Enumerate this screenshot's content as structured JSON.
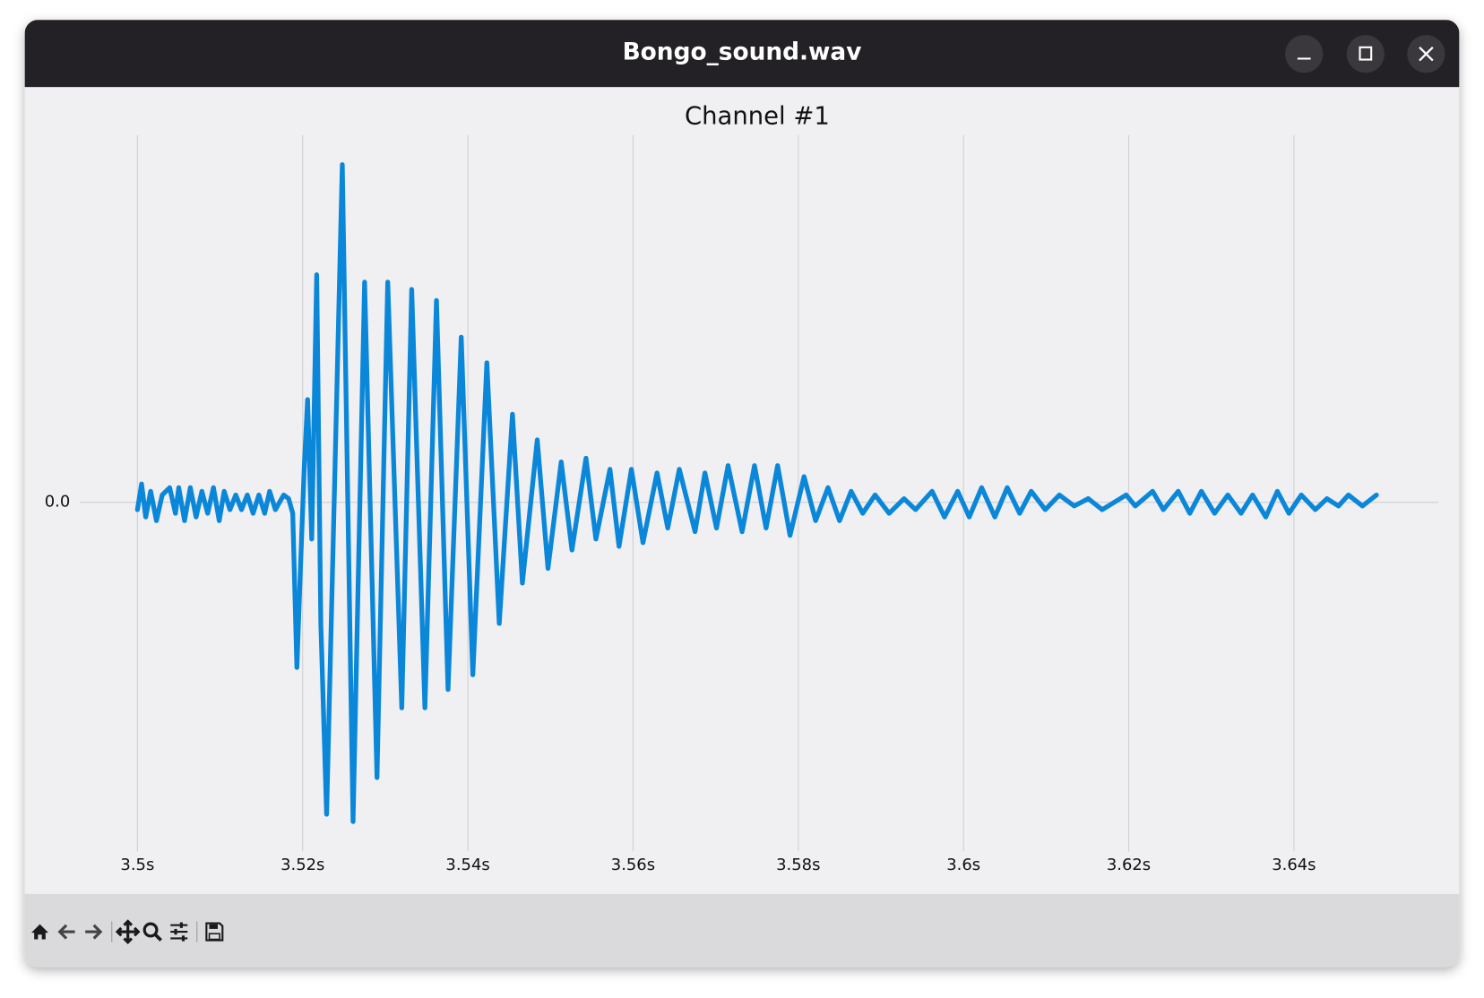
{
  "window_title": "Bongo_sound.wav",
  "chart_data": {
    "type": "line",
    "title": "Channel #1",
    "color": "#0a87d9",
    "grid": true,
    "xlim": [
      3.493,
      3.6575
    ],
    "ylim": [
      -0.951,
      1
    ],
    "xticks": [
      {
        "value": 3.5,
        "label": "3.5s"
      },
      {
        "value": 3.52,
        "label": "3.52s"
      },
      {
        "value": 3.54,
        "label": "3.54s"
      },
      {
        "value": 3.56,
        "label": "3.56s"
      },
      {
        "value": 3.58,
        "label": "3.58s"
      },
      {
        "value": 3.6,
        "label": "3.6s"
      },
      {
        "value": 3.62,
        "label": "3.62s"
      },
      {
        "value": 3.64,
        "label": "3.64s"
      }
    ],
    "yticks": [
      {
        "value": 0,
        "label": "0.0"
      }
    ],
    "x": [
      3.5,
      3.5005,
      3.501,
      3.5016,
      3.5023,
      3.503,
      3.5039,
      3.5046,
      3.505,
      3.5057,
      3.5064,
      3.5071,
      3.5078,
      3.5085,
      3.5092,
      3.5099,
      3.5105,
      3.5112,
      3.5119,
      3.5126,
      3.5133,
      3.514,
      3.5147,
      3.5154,
      3.516,
      3.5167,
      3.5177,
      3.5183,
      3.5188,
      3.5193,
      3.5197,
      3.5202,
      3.5206,
      3.5211,
      3.5217,
      3.5222,
      3.5229,
      3.5236,
      3.5248,
      3.5261,
      3.5275,
      3.529,
      3.5303,
      3.532,
      3.5332,
      3.5348,
      3.5362,
      3.5376,
      3.5392,
      3.5406,
      3.5423,
      3.5438,
      3.5454,
      3.5466,
      3.5484,
      3.5497,
      3.5513,
      3.5526,
      3.5543,
      3.5555,
      3.5572,
      3.5583,
      3.5598,
      3.5612,
      3.5629,
      3.5642,
      3.5656,
      3.5675,
      3.5687,
      3.5701,
      3.5715,
      3.5732,
      3.5747,
      3.5761,
      3.5775,
      3.579,
      3.5807,
      3.5821,
      3.5836,
      3.585,
      3.5864,
      3.5878,
      3.5893,
      3.591,
      3.5928,
      3.5942,
      3.5962,
      3.5977,
      3.5993,
      3.6007,
      3.6022,
      3.6038,
      3.6053,
      3.6068,
      3.6082,
      3.6099,
      3.6116,
      3.6134,
      3.6151,
      3.6168,
      3.6197,
      3.6208,
      3.6229,
      3.6242,
      3.626,
      3.6274,
      3.6288,
      3.6304,
      3.632,
      3.6336,
      3.635,
      3.6366,
      3.638,
      3.6394,
      3.6409,
      3.6426,
      3.644,
      3.6454,
      3.6466,
      3.6483,
      3.65
    ],
    "values": [
      -0.02,
      0.05,
      -0.04,
      0.03,
      -0.05,
      0.02,
      0.04,
      -0.03,
      0.04,
      -0.05,
      0.04,
      -0.04,
      0.03,
      -0.03,
      0.04,
      -0.05,
      0.03,
      -0.02,
      0.02,
      -0.02,
      0.02,
      -0.03,
      0.02,
      -0.03,
      0.03,
      -0.02,
      0.02,
      0.01,
      -0.03,
      -0.45,
      -0.2,
      0.1,
      0.28,
      -0.1,
      0.62,
      -0.33,
      -0.85,
      -0.2,
      0.92,
      -0.87,
      0.6,
      -0.75,
      0.6,
      -0.56,
      0.58,
      -0.56,
      0.55,
      -0.51,
      0.45,
      -0.47,
      0.38,
      -0.33,
      0.24,
      -0.22,
      0.17,
      -0.18,
      0.11,
      -0.13,
      0.12,
      -0.1,
      0.09,
      -0.12,
      0.09,
      -0.11,
      0.08,
      -0.07,
      0.09,
      -0.08,
      0.08,
      -0.07,
      0.1,
      -0.08,
      0.1,
      -0.07,
      0.1,
      -0.09,
      0.07,
      -0.05,
      0.04,
      -0.05,
      0.03,
      -0.03,
      0.02,
      -0.03,
      0.01,
      -0.02,
      0.03,
      -0.04,
      0.03,
      -0.04,
      0.04,
      -0.04,
      0.04,
      -0.03,
      0.03,
      -0.02,
      0.02,
      -0.01,
      0.01,
      -0.02,
      0.02,
      -0.01,
      0.03,
      -0.02,
      0.03,
      -0.03,
      0.03,
      -0.03,
      0.02,
      -0.03,
      0.02,
      -0.04,
      0.03,
      -0.03,
      0.02,
      -0.02,
      0.01,
      -0.01,
      0.02,
      -0.01,
      0.02
    ]
  }
}
